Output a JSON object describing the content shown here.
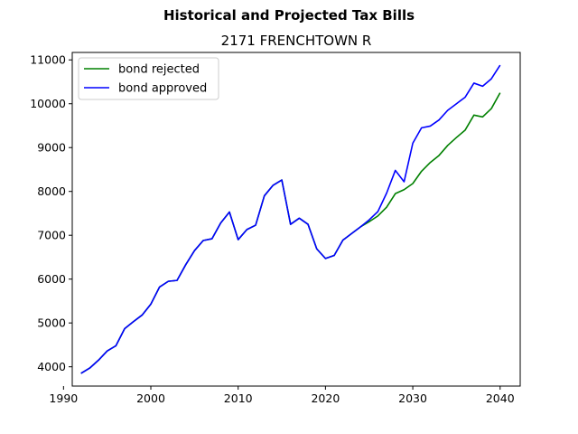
{
  "chart_data": {
    "type": "line",
    "suptitle": "Historical and Projected Tax Bills",
    "title": "2171 FRENCHTOWN R",
    "xlabel": "",
    "ylabel": "",
    "xlim": [
      1991,
      2042.3
    ],
    "ylim": [
      3560,
      11170
    ],
    "x_ticks": [
      1990,
      2000,
      2010,
      2020,
      2030,
      2040
    ],
    "y_ticks": [
      4000,
      5000,
      6000,
      7000,
      8000,
      9000,
      10000,
      11000
    ],
    "grid": false,
    "legend_position": "upper left",
    "series": [
      {
        "name": "bond rejected",
        "color": "#008000",
        "x": [
          1992,
          1993,
          1994,
          1995,
          1996,
          1997,
          1998,
          1999,
          2000,
          2001,
          2002,
          2003,
          2004,
          2005,
          2006,
          2007,
          2008,
          2009,
          2010,
          2011,
          2012,
          2013,
          2014,
          2015,
          2016,
          2017,
          2018,
          2019,
          2020,
          2021,
          2022,
          2023,
          2024,
          2025,
          2026,
          2027,
          2028,
          2029,
          2030,
          2031,
          2032,
          2033,
          2034,
          2035,
          2036,
          2037,
          2038,
          2039,
          2040
        ],
        "values": [
          3850,
          3970,
          4150,
          4360,
          4480,
          4870,
          5030,
          5180,
          5430,
          5820,
          5950,
          5970,
          6330,
          6650,
          6880,
          6920,
          7280,
          7530,
          6900,
          7130,
          7230,
          7900,
          8140,
          8260,
          7250,
          7390,
          7250,
          6690,
          6470,
          6540,
          6890,
          7040,
          7190,
          7310,
          7440,
          7640,
          7950,
          8040,
          8180,
          8460,
          8660,
          8820,
          9050,
          9230,
          9400,
          9740,
          9700,
          9890,
          10250
        ]
      },
      {
        "name": "bond approved",
        "color": "#0000ff",
        "x": [
          1992,
          1993,
          1994,
          1995,
          1996,
          1997,
          1998,
          1999,
          2000,
          2001,
          2002,
          2003,
          2004,
          2005,
          2006,
          2007,
          2008,
          2009,
          2010,
          2011,
          2012,
          2013,
          2014,
          2015,
          2016,
          2017,
          2018,
          2019,
          2020,
          2021,
          2022,
          2023,
          2024,
          2025,
          2026,
          2027,
          2028,
          2029,
          2030,
          2031,
          2032,
          2033,
          2034,
          2035,
          2036,
          2037,
          2038,
          2039,
          2040
        ],
        "values": [
          3850,
          3970,
          4150,
          4360,
          4480,
          4870,
          5030,
          5180,
          5430,
          5820,
          5950,
          5970,
          6330,
          6650,
          6880,
          6920,
          7280,
          7530,
          6900,
          7130,
          7230,
          7900,
          8140,
          8260,
          7250,
          7390,
          7250,
          6690,
          6470,
          6540,
          6890,
          7040,
          7190,
          7350,
          7540,
          7960,
          8480,
          8220,
          9100,
          9450,
          9490,
          9630,
          9850,
          10000,
          10150,
          10470,
          10400,
          10570,
          10880
        ]
      }
    ]
  }
}
